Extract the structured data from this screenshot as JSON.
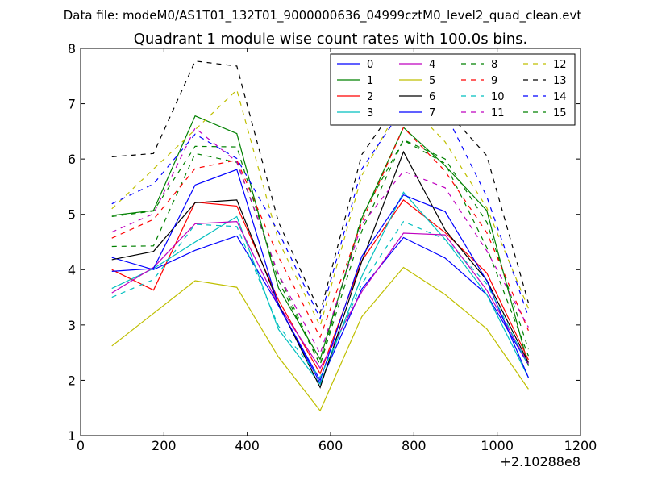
{
  "figure": {
    "suptitle": "Data file: modeM0/AS1T01_132T01_9000000636_04999cztM0_level2_quad_clean.evt"
  },
  "chart_data": {
    "type": "line",
    "title": "Quadrant 1 module wise count rates with 100.0s bins.",
    "xlabel": "",
    "ylabel": "",
    "x_offset_label": "+2.10288e8",
    "xlim": [
      0,
      1200
    ],
    "ylim": [
      1,
      8
    ],
    "xticks": [
      0,
      200,
      400,
      600,
      800,
      1000,
      1200
    ],
    "yticks": [
      1,
      2,
      3,
      4,
      5,
      6,
      7,
      8
    ],
    "grid": false,
    "legend_position": "top-right",
    "legend_columns": 4,
    "x": [
      75,
      175,
      275,
      375,
      475,
      575,
      675,
      775,
      875,
      975,
      1075
    ],
    "series": [
      {
        "name": "0",
        "color": "#0000ff",
        "dash": "solid",
        "values": [
          4.22,
          4.0,
          4.35,
          4.61,
          3.35,
          1.95,
          3.65,
          4.58,
          4.21,
          3.55,
          2.28
        ]
      },
      {
        "name": "1",
        "color": "#008000",
        "dash": "solid",
        "values": [
          4.98,
          5.07,
          6.78,
          6.46,
          3.67,
          2.38,
          4.93,
          6.57,
          5.88,
          5.07,
          2.26
        ]
      },
      {
        "name": "2",
        "color": "#ff0000",
        "dash": "solid",
        "values": [
          4.0,
          3.63,
          5.22,
          5.15,
          3.45,
          2.12,
          4.16,
          5.26,
          4.67,
          3.94,
          2.37
        ]
      },
      {
        "name": "3",
        "color": "#00bfbf",
        "dash": "solid",
        "values": [
          3.66,
          4.02,
          4.5,
          4.96,
          2.92,
          1.93,
          3.88,
          5.4,
          4.55,
          3.55,
          2.05
        ]
      },
      {
        "name": "4",
        "color": "#bf00bf",
        "dash": "solid",
        "values": [
          3.58,
          4.04,
          4.83,
          4.87,
          3.36,
          2.22,
          3.6,
          4.66,
          4.63,
          3.63,
          2.3
        ]
      },
      {
        "name": "5",
        "color": "#bfbf00",
        "dash": "solid",
        "values": [
          2.62,
          3.21,
          3.8,
          3.68,
          2.42,
          1.45,
          3.15,
          4.04,
          3.55,
          2.93,
          1.84
        ]
      },
      {
        "name": "6",
        "color": "#000000",
        "dash": "solid",
        "values": [
          4.18,
          4.33,
          5.21,
          5.26,
          3.38,
          1.87,
          4.15,
          6.13,
          4.72,
          3.81,
          2.32
        ]
      },
      {
        "name": "7",
        "color": "#0000ff",
        "dash": "solid",
        "values": [
          3.97,
          4.02,
          5.53,
          5.81,
          3.35,
          2.0,
          4.24,
          5.35,
          5.05,
          3.8,
          2.05
        ]
      },
      {
        "name": "8",
        "color": "#008000",
        "dash": "dashed",
        "values": [
          4.42,
          4.43,
          6.1,
          5.94,
          3.91,
          2.28,
          4.7,
          6.35,
          6.0,
          4.86,
          2.56
        ]
      },
      {
        "name": "9",
        "color": "#ff0000",
        "dash": "dashed",
        "values": [
          4.57,
          4.91,
          5.83,
          5.98,
          4.23,
          2.78,
          4.86,
          6.57,
          5.78,
          4.67,
          2.9
        ]
      },
      {
        "name": "10",
        "color": "#00bfbf",
        "dash": "dashed",
        "values": [
          3.5,
          3.82,
          4.82,
          4.78,
          2.98,
          2.05,
          3.74,
          4.87,
          4.55,
          3.74,
          2.26
        ]
      },
      {
        "name": "11",
        "color": "#bf00bf",
        "dash": "dashed",
        "values": [
          4.68,
          5.01,
          6.56,
          5.95,
          3.92,
          2.48,
          4.82,
          5.78,
          5.48,
          4.34,
          2.96
        ]
      },
      {
        "name": "12",
        "color": "#bfbf00",
        "dash": "dashed",
        "values": [
          5.1,
          5.82,
          6.53,
          7.25,
          4.52,
          2.98,
          5.7,
          7.09,
          6.31,
          5.12,
          3.3
        ]
      },
      {
        "name": "13",
        "color": "#000000",
        "dash": "dashed",
        "values": [
          6.04,
          6.1,
          7.77,
          7.68,
          4.86,
          3.22,
          6.08,
          7.16,
          6.9,
          6.06,
          3.4
        ]
      },
      {
        "name": "14",
        "color": "#0000ff",
        "dash": "dashed",
        "values": [
          5.19,
          5.55,
          6.45,
          6.01,
          4.68,
          3.12,
          5.82,
          6.93,
          6.84,
          5.32,
          3.15
        ]
      },
      {
        "name": "15",
        "color": "#008000",
        "dash": "dashed",
        "values": [
          4.96,
          5.06,
          6.23,
          6.22,
          3.8,
          2.28,
          4.97,
          6.34,
          5.92,
          4.4,
          2.44
        ]
      }
    ]
  }
}
